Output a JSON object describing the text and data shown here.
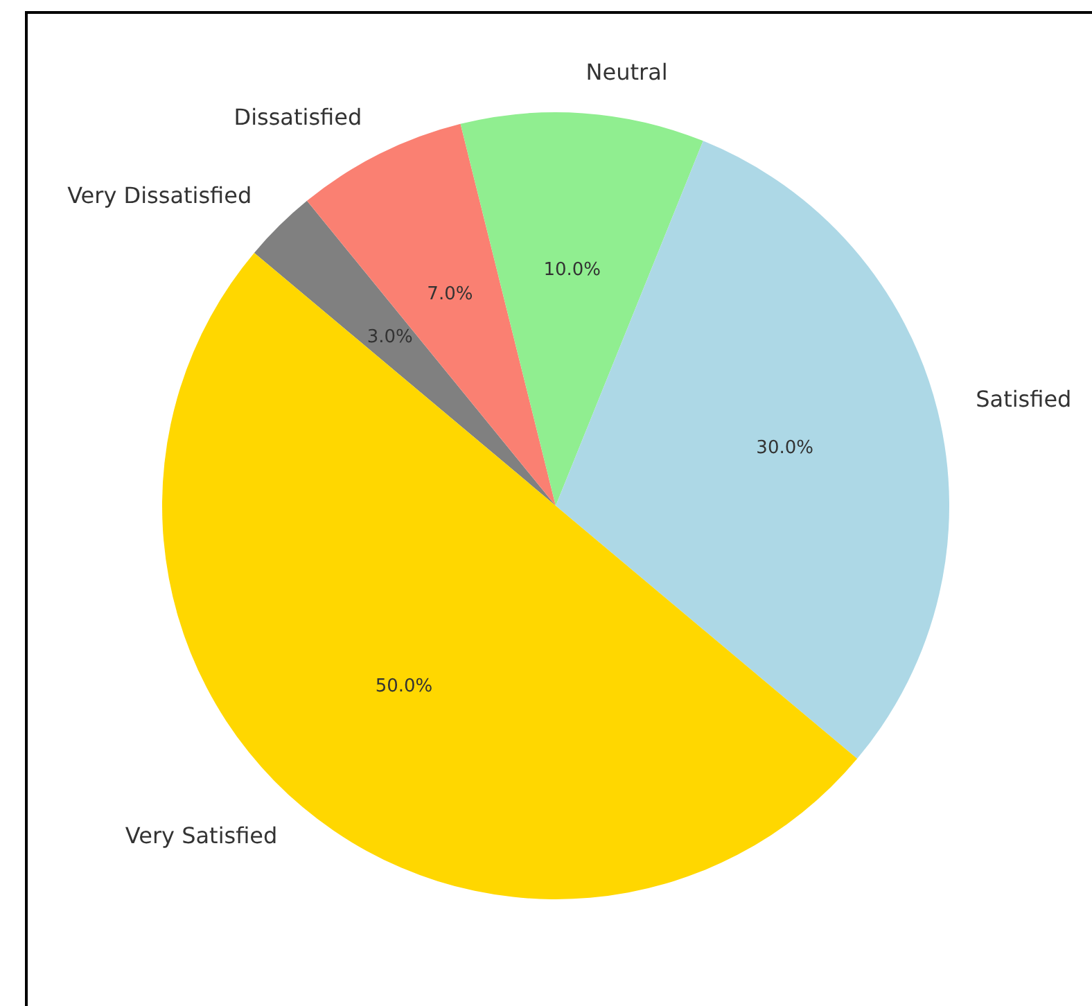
{
  "chart_data": {
    "type": "pie",
    "categories": [
      "Very Dissatisfied",
      "Dissatisfied",
      "Neutral",
      "Satisfied",
      "Very Satisfied"
    ],
    "values": [
      3,
      7,
      10,
      30,
      50
    ],
    "colors": [
      "#808080",
      "#fa8072",
      "#90ee90",
      "#add8e6",
      "#ffd700"
    ],
    "value_labels": [
      "3.0%",
      "7.0%",
      "10.0%",
      "30.0%",
      "50.0%"
    ],
    "legend": false
  }
}
